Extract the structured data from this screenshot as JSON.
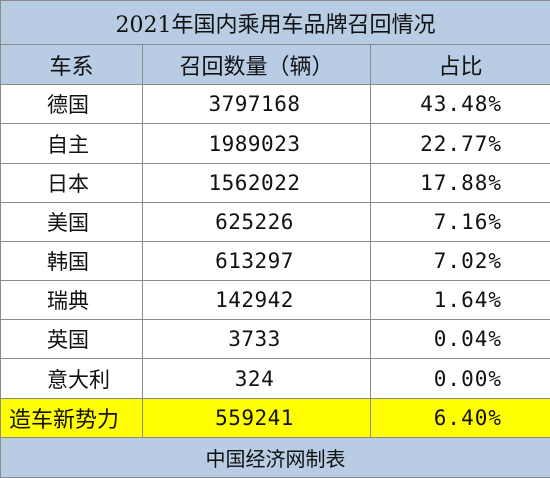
{
  "chart_data": {
    "type": "table",
    "title": "2021年国内乘用车品牌召回情况",
    "columns": [
      "车系",
      "召回数量（辆）",
      "占比"
    ],
    "rows": [
      {
        "category": "德国",
        "count": "3797168",
        "share": "43.48%"
      },
      {
        "category": "自主",
        "count": "1989023",
        "share": "22.77%"
      },
      {
        "category": "日本",
        "count": "1562022",
        "share": "17.88%"
      },
      {
        "category": "美国",
        "count": "625226",
        "share": "7.16%"
      },
      {
        "category": "韩国",
        "count": "613297",
        "share": "7.02%"
      },
      {
        "category": "瑞典",
        "count": "142942",
        "share": "1.64%"
      },
      {
        "category": "英国",
        "count": "3733",
        "share": "0.04%"
      },
      {
        "category": "意大利",
        "count": "324",
        "share": "0.00%"
      },
      {
        "category": "造车新势力",
        "count": "559241",
        "share": "6.40%"
      }
    ],
    "footer": "中国经济网制表",
    "highlight_row_color": "#ffff00",
    "header_fill_color": "#b8cce4"
  }
}
